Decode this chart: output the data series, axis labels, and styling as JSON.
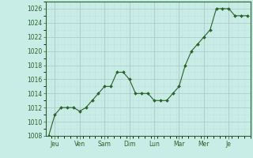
{
  "y_values": [
    1008,
    1011,
    1012,
    1012,
    1012,
    1011.5,
    1012,
    1013,
    1014,
    1015,
    1015,
    1017,
    1017,
    1016,
    1014,
    1014,
    1014,
    1013,
    1013,
    1013,
    1014,
    1015,
    1018,
    1020,
    1021,
    1022,
    1023,
    1026,
    1026,
    1026,
    1025,
    1025,
    1025
  ],
  "ylim_min": 1008,
  "ylim_max": 1027,
  "ytick_values": [
    1008,
    1010,
    1012,
    1014,
    1016,
    1018,
    1020,
    1022,
    1024,
    1026
  ],
  "day_positions": [
    1,
    5,
    9,
    13,
    17,
    21,
    25,
    29
  ],
  "day_labels": [
    "Jeu",
    "Ven",
    "Sam",
    "Dim",
    "Lun",
    "Mar",
    "Mer",
    "Je"
  ],
  "line_color": "#2a622a",
  "marker_color": "#2a622a",
  "bg_color": "#c8ece6",
  "major_grid_color": "#b0cccc",
  "minor_grid_color": "#c0dddd",
  "spine_color": "#2a622a",
  "font_color": "#2a622a",
  "tick_label_size": 5.5
}
